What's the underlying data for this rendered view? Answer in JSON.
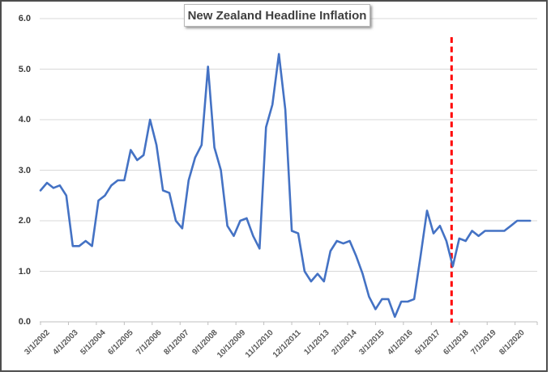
{
  "window": {
    "background_color": "#ffffff",
    "frame_border_color": "#4d4d4d"
  },
  "chart_data": {
    "type": "line",
    "title": "New Zealand Headline Inflation",
    "ylim": [
      0.0,
      6.0
    ],
    "y_tick_labels": [
      "0.0",
      "1.0",
      "2.0",
      "3.0",
      "4.0",
      "5.0",
      "6.0"
    ],
    "y_tick_values": [
      0,
      1,
      2,
      3,
      4,
      5,
      6
    ],
    "x_tick_labels": [
      "3/1/2002",
      "4/1/2003",
      "5/1/2004",
      "6/1/2005",
      "7/1/2006",
      "8/1/2007",
      "9/1/2008",
      "10/1/2009",
      "11/1/2010",
      "12/1/2011",
      "1/1/2013",
      "2/1/2014",
      "3/1/2015",
      "4/1/2016",
      "5/1/2017",
      "6/1/2018",
      "7/1/2019",
      "8/1/2020"
    ],
    "grid": "horizontal-only",
    "legend": "none",
    "colors": {
      "line": "#4472C4",
      "annotation_line": "#FF0000",
      "gridline": "#d9d9d9",
      "axis_line": "#bfbfbf"
    },
    "series": [
      {
        "name": "New Zealand Headline Inflation (% YoY)",
        "color": "#4472C4",
        "categories": [
          "2002Q1",
          "2002Q2",
          "2002Q3",
          "2002Q4",
          "2003Q1",
          "2003Q2",
          "2003Q3",
          "2003Q4",
          "2004Q1",
          "2004Q2",
          "2004Q3",
          "2004Q4",
          "2005Q1",
          "2005Q2",
          "2005Q3",
          "2005Q4",
          "2006Q1",
          "2006Q2",
          "2006Q3",
          "2006Q4",
          "2007Q1",
          "2007Q2",
          "2007Q3",
          "2007Q4",
          "2008Q1",
          "2008Q2",
          "2008Q3",
          "2008Q4",
          "2009Q1",
          "2009Q2",
          "2009Q3",
          "2009Q4",
          "2010Q1",
          "2010Q2",
          "2010Q3",
          "2010Q4",
          "2011Q1",
          "2011Q2",
          "2011Q3",
          "2011Q4",
          "2012Q1",
          "2012Q2",
          "2012Q3",
          "2012Q4",
          "2013Q1",
          "2013Q2",
          "2013Q3",
          "2013Q4",
          "2014Q1",
          "2014Q2",
          "2014Q3",
          "2014Q4",
          "2015Q1",
          "2015Q2",
          "2015Q3",
          "2015Q4",
          "2016Q1",
          "2016Q2",
          "2016Q3",
          "2016Q4",
          "2017Q1",
          "2017Q2",
          "2017Q3",
          "2017Q4",
          "2018Q1",
          "2018Q2",
          "2018Q3",
          "2018Q4",
          "2019Q1",
          "2019Q2",
          "2019Q3",
          "2019Q4",
          "2020Q1",
          "2020Q2",
          "2020Q3",
          "2020Q4",
          "2021Q1"
        ],
        "values": [
          2.6,
          2.75,
          2.65,
          2.7,
          2.5,
          1.5,
          1.5,
          1.6,
          1.5,
          2.4,
          2.5,
          2.7,
          2.8,
          2.8,
          3.4,
          3.2,
          3.3,
          4.0,
          3.5,
          2.6,
          2.55,
          2.0,
          1.85,
          2.8,
          3.25,
          3.5,
          5.05,
          3.45,
          3.0,
          1.9,
          1.7,
          2.0,
          2.05,
          1.7,
          1.45,
          3.85,
          4.3,
          5.3,
          4.2,
          1.8,
          1.75,
          1.0,
          0.8,
          0.95,
          0.8,
          1.4,
          1.6,
          1.55,
          1.6,
          1.3,
          0.95,
          0.5,
          0.25,
          0.45,
          0.45,
          0.1,
          0.4,
          0.4,
          0.45,
          1.3,
          2.2,
          1.75,
          1.9,
          1.6,
          1.1,
          1.65,
          1.6,
          1.8,
          1.7,
          1.8,
          1.8,
          1.8,
          1.8,
          1.9,
          2.0,
          2.0,
          2.0
        ]
      }
    ],
    "annotation": {
      "type": "vertical-dashed-line",
      "color": "#FF0000",
      "at_category": "2018Q1",
      "at_category_index": 64,
      "near_x_tick_label": "6/1/2018"
    }
  }
}
